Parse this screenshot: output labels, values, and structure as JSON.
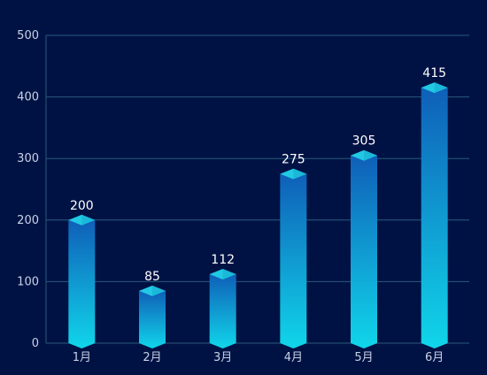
{
  "chart_data": {
    "type": "bar",
    "style": "3d-cylinder",
    "categories": [
      "1月",
      "2月",
      "3月",
      "4月",
      "5月",
      "6月"
    ],
    "values": [
      200,
      85,
      112,
      275,
      305,
      415
    ],
    "title": "",
    "xlabel": "",
    "ylabel": "",
    "ylim": [
      0,
      500
    ],
    "yticks": [
      0,
      100,
      200,
      300,
      400,
      500
    ],
    "grid": true,
    "legend": "none",
    "data_labels": true
  },
  "colors": {
    "background": "#001244",
    "bar_top": "#0f5fb8",
    "bar_bottom": "#10d6ea",
    "bar_cap": "#21c9e3",
    "bar_cap_side": "#18a9d4",
    "grid": "#2a5a7a",
    "axis_text": "#c8d2e6",
    "label_text": "#ffffff"
  }
}
